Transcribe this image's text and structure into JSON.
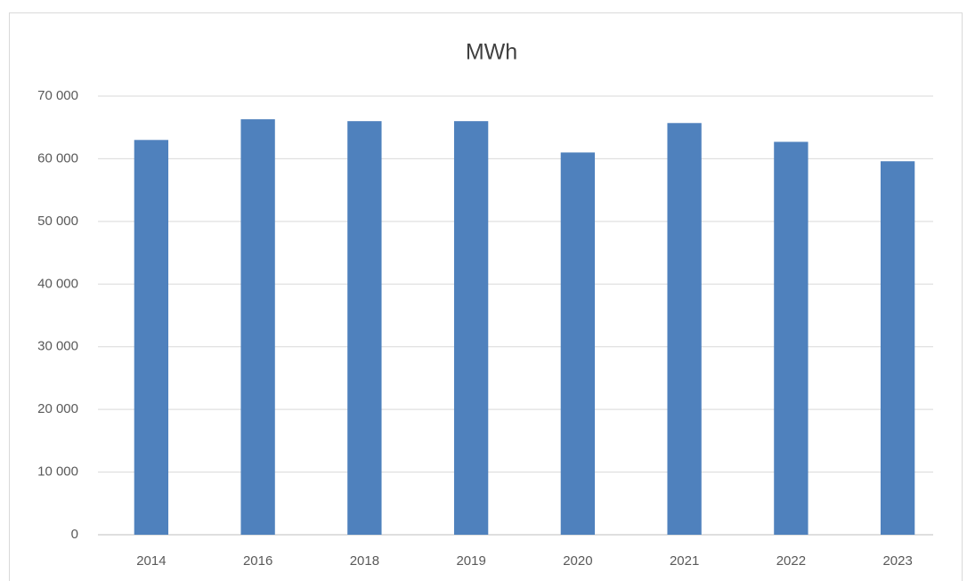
{
  "chart_data": {
    "type": "bar",
    "title": "MWh",
    "categories": [
      "2014",
      "2016",
      "2018",
      "2019",
      "2020",
      "2021",
      "2022",
      "2023"
    ],
    "values": [
      63000,
      66300,
      66000,
      66000,
      61000,
      65700,
      62700,
      59600
    ],
    "color": "#4f81bd",
    "ylim": [
      0,
      70000
    ],
    "yticks": [
      0,
      {
        "value": 10000,
        "label": "10 000"
      },
      {
        "value": 20000,
        "label": "20 000"
      },
      {
        "value": 30000,
        "label": "30 000"
      },
      {
        "value": 40000,
        "label": "40 000"
      },
      {
        "value": 50000,
        "label": "50 000"
      },
      {
        "value": 60000,
        "label": "60 000"
      },
      {
        "value": 70000,
        "label": "70 000"
      }
    ],
    "grid": true
  }
}
